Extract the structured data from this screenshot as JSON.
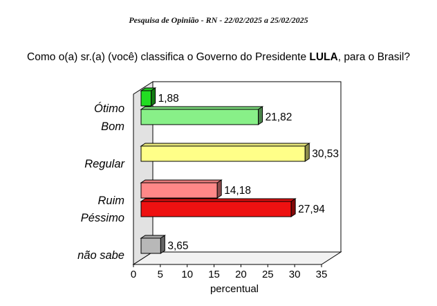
{
  "header": "Pesquisa de Opinião  -   RN  - 22/02/2025   a  25/02/2025",
  "question": {
    "before": "Como o(a) sr.(a) (você) classifica o Governo do Presidente ",
    "bold": "LULA",
    "after": ", para o Brasil?"
  },
  "chart_data": {
    "type": "bar",
    "orientation": "horizontal",
    "categories": [
      "Ótimo",
      "Bom",
      "Regular",
      "Ruim",
      "Péssimo",
      "não sabe"
    ],
    "values": [
      1.88,
      21.82,
      30.53,
      14.18,
      27.94,
      3.65
    ],
    "value_labels": [
      "1,88",
      "21,82",
      "30,53",
      "14,18",
      "27,94",
      "3,65"
    ],
    "colors": [
      "#22dd22",
      "#88f088",
      "#ffff88",
      "#ff8888",
      "#ee1111",
      "#b8b8b8"
    ],
    "xlabel": "percentual",
    "xlim": [
      0,
      35
    ],
    "xticks": [
      "0",
      "5",
      "10",
      "15",
      "20",
      "25",
      "30",
      "35"
    ],
    "style": "3d",
    "grid": false,
    "legend": "none"
  }
}
